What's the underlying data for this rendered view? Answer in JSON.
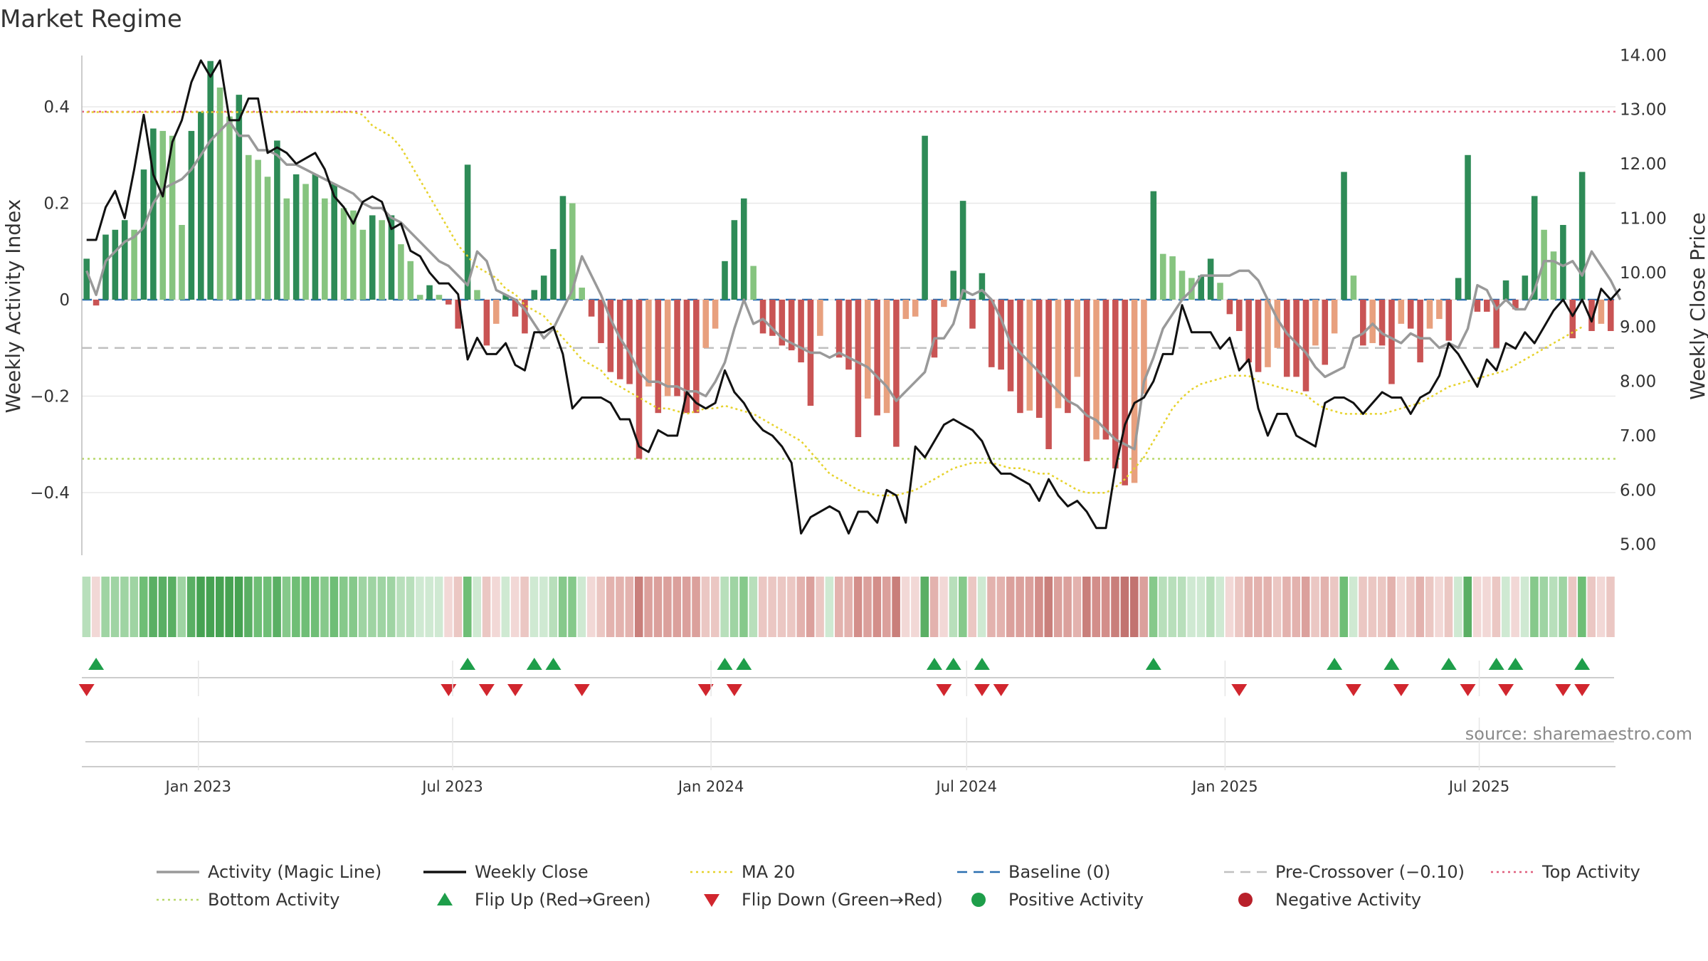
{
  "chart_data": {
    "type": "bar",
    "title": "Market Regime",
    "source": "source: sharemaestro.com",
    "ylabel_left": "Weekly Activity Index",
    "ylabel_right": "Weekly Close Price",
    "x_start": "2022-10-10",
    "x_end": "2025-10-06",
    "x_ticks": [
      "Jan 2023",
      "Jul 2023",
      "Jan 2024",
      "Jul 2024",
      "Jan 2025",
      "Jul 2025"
    ],
    "x_tick_dates": [
      "2023-01-01",
      "2023-07-01",
      "2024-01-01",
      "2024-07-01",
      "2025-01-01",
      "2025-07-01"
    ],
    "ylim_left": [
      -0.53,
      0.53
    ],
    "yticks_left": [
      0.4,
      0.2,
      0,
      -0.2,
      -0.4
    ],
    "ytick_labels_left": [
      "0.4",
      "0.2",
      "0",
      "−0.2",
      "−0.4"
    ],
    "ylim_right": [
      4.8,
      14.2
    ],
    "yticks_right": [
      14,
      13,
      12,
      11,
      10,
      9,
      8,
      7,
      6,
      5
    ],
    "ytick_labels_right": [
      "14.00",
      "13.00",
      "12.00",
      "11.00",
      "10.00",
      "9.00",
      "8.00",
      "7.00",
      "6.00",
      "5.00"
    ],
    "levels": {
      "top": 0.39,
      "pre_crossover": -0.1,
      "bottom": -0.33,
      "baseline": 0
    },
    "colors": {
      "pos_strong": "#2e8b57",
      "pos_light": "#86c47f",
      "neg_strong": "#c95454",
      "neg_light": "#e8a07e",
      "magic": "#999999",
      "close": "#111111",
      "ma20": "#e6d22c",
      "baseline": "#2a6fb0",
      "pre": "#c0c0c0",
      "top": "#e0607e",
      "bottom": "#b8d86a",
      "flip_up": "#1e9e4a",
      "flip_down": "#d1262e",
      "pos_dot": "#1e9e4a",
      "neg_dot": "#b8202a"
    },
    "series": [
      {
        "name": "Activity (Magic Line)",
        "style": "solid",
        "color": "#999999"
      },
      {
        "name": "Weekly Close",
        "style": "solid",
        "color": "#111111"
      },
      {
        "name": "MA 20",
        "style": "dotted",
        "color": "#e6d22c"
      },
      {
        "name": "Baseline (0)",
        "style": "dashed",
        "color": "#2a6fb0"
      },
      {
        "name": "Pre-Crossover (−0.10)",
        "style": "dashed",
        "color": "#c0c0c0"
      },
      {
        "name": "Top Activity",
        "style": "dotted",
        "color": "#e0607e"
      },
      {
        "name": "Bottom Activity",
        "style": "dotted",
        "color": "#b8d86a"
      },
      {
        "name": "Flip Up (Red→Green)",
        "style": "tri-up",
        "color": "#1e9e4a"
      },
      {
        "name": "Flip Down (Green→Red)",
        "style": "tri-down",
        "color": "#d1262e"
      },
      {
        "name": "Positive Activity",
        "style": "dot",
        "color": "#1e9e4a"
      },
      {
        "name": "Negative Activity",
        "style": "dot",
        "color": "#b8202a"
      }
    ],
    "activity": [
      0.085,
      -0.012,
      0.135,
      0.145,
      0.165,
      0.145,
      0.27,
      0.355,
      0.35,
      0.34,
      0.155,
      0.35,
      0.39,
      0.495,
      0.44,
      0.38,
      0.425,
      0.3,
      0.29,
      0.255,
      0.33,
      0.21,
      0.26,
      0.24,
      0.26,
      0.21,
      0.24,
      0.19,
      0.185,
      0.145,
      0.175,
      0.165,
      0.175,
      0.115,
      0.08,
      0.01,
      0.03,
      0.01,
      -0.01,
      -0.06,
      0.28,
      0.02,
      -0.095,
      -0.05,
      0.01,
      -0.035,
      -0.07,
      0.02,
      0.05,
      0.105,
      0.215,
      0.2,
      0.025,
      -0.035,
      -0.09,
      -0.15,
      -0.165,
      -0.175,
      -0.33,
      -0.18,
      -0.235,
      -0.2,
      -0.2,
      -0.235,
      -0.235,
      -0.1,
      -0.06,
      0.08,
      0.165,
      0.21,
      0.07,
      -0.07,
      -0.075,
      -0.095,
      -0.105,
      -0.13,
      -0.22,
      -0.075,
      0.0,
      -0.12,
      -0.145,
      -0.285,
      -0.205,
      -0.24,
      -0.235,
      -0.305,
      -0.04,
      -0.035,
      0.34,
      -0.12,
      -0.015,
      0.06,
      0.205,
      -0.06,
      0.055,
      -0.14,
      -0.145,
      -0.19,
      -0.235,
      -0.23,
      -0.245,
      -0.31,
      -0.225,
      -0.235,
      -0.16,
      -0.335,
      -0.29,
      -0.29,
      -0.35,
      -0.385,
      -0.38,
      -0.195,
      0.225,
      0.095,
      0.09,
      0.06,
      0.045,
      0.05,
      0.085,
      0.035,
      -0.03,
      -0.065,
      -0.13,
      -0.15,
      -0.14,
      -0.1,
      -0.16,
      -0.16,
      -0.19,
      -0.095,
      -0.135,
      -0.07,
      0.265,
      0.05,
      -0.095,
      -0.09,
      -0.095,
      -0.175,
      -0.05,
      -0.06,
      -0.13,
      -0.06,
      -0.04,
      -0.085,
      0.045,
      0.3,
      -0.025,
      -0.025,
      -0.1,
      0.04,
      -0.02,
      0.05,
      0.215,
      0.145,
      0.1,
      0.155,
      -0.08,
      0.265,
      -0.065,
      -0.05,
      -0.065
    ],
    "magic_line": [
      0.06,
      0.01,
      0.08,
      0.1,
      0.12,
      0.13,
      0.15,
      0.2,
      0.23,
      0.24,
      0.25,
      0.27,
      0.3,
      0.33,
      0.35,
      0.37,
      0.34,
      0.34,
      0.31,
      0.31,
      0.3,
      0.28,
      0.28,
      0.27,
      0.26,
      0.25,
      0.24,
      0.23,
      0.22,
      0.2,
      0.19,
      0.19,
      0.17,
      0.16,
      0.14,
      0.12,
      0.1,
      0.08,
      0.07,
      0.05,
      0.03,
      0.1,
      0.08,
      0.02,
      0.01,
      0.0,
      -0.02,
      -0.05,
      -0.08,
      -0.06,
      -0.02,
      0.02,
      0.09,
      0.05,
      0.01,
      -0.04,
      -0.08,
      -0.11,
      -0.15,
      -0.17,
      -0.17,
      -0.18,
      -0.18,
      -0.19,
      -0.19,
      -0.2,
      -0.17,
      -0.13,
      -0.06,
      0.0,
      -0.05,
      -0.04,
      -0.06,
      -0.08,
      -0.09,
      -0.1,
      -0.11,
      -0.11,
      -0.12,
      -0.11,
      -0.12,
      -0.13,
      -0.14,
      -0.16,
      -0.18,
      -0.21,
      -0.19,
      -0.17,
      -0.15,
      -0.08,
      -0.08,
      -0.05,
      0.02,
      0.01,
      0.02,
      0.0,
      -0.04,
      -0.09,
      -0.11,
      -0.13,
      -0.15,
      -0.17,
      -0.19,
      -0.21,
      -0.22,
      -0.24,
      -0.25,
      -0.27,
      -0.29,
      -0.3,
      -0.31,
      -0.17,
      -0.12,
      -0.06,
      -0.03,
      0.0,
      0.02,
      0.05,
      0.05,
      0.05,
      0.05,
      0.06,
      0.06,
      0.04,
      0.0,
      -0.04,
      -0.07,
      -0.09,
      -0.11,
      -0.14,
      -0.16,
      -0.15,
      -0.14,
      -0.08,
      -0.07,
      -0.05,
      -0.07,
      -0.08,
      -0.09,
      -0.07,
      -0.08,
      -0.08,
      -0.1,
      -0.09,
      -0.1,
      -0.06,
      0.03,
      0.02,
      -0.02,
      0.0,
      -0.02,
      -0.02,
      0.02,
      0.08,
      0.08,
      0.07,
      0.08,
      0.05,
      0.1,
      0.07,
      0.04,
      0.0
    ],
    "weekly_close": [
      10.6,
      10.6,
      11.2,
      11.5,
      11.0,
      11.9,
      12.9,
      11.8,
      11.4,
      12.4,
      12.8,
      13.5,
      13.9,
      13.6,
      13.9,
      12.8,
      12.8,
      13.2,
      13.2,
      12.2,
      12.3,
      12.2,
      12.0,
      12.1,
      12.2,
      11.9,
      11.4,
      11.2,
      10.9,
      11.3,
      11.4,
      11.3,
      10.8,
      10.9,
      10.4,
      10.3,
      10.0,
      9.8,
      9.8,
      9.6,
      8.4,
      8.8,
      8.5,
      8.5,
      8.7,
      8.3,
      8.2,
      8.9,
      8.9,
      9.0,
      8.5,
      7.5,
      7.7,
      7.7,
      7.7,
      7.6,
      7.3,
      7.3,
      6.8,
      6.7,
      7.1,
      7.0,
      7.0,
      7.8,
      7.6,
      7.5,
      7.6,
      8.2,
      7.8,
      7.6,
      7.3,
      7.1,
      7.0,
      6.8,
      6.5,
      5.2,
      5.5,
      5.6,
      5.7,
      5.6,
      5.2,
      5.6,
      5.6,
      5.4,
      6.0,
      5.9,
      5.4,
      6.8,
      6.6,
      6.9,
      7.2,
      7.3,
      7.2,
      7.1,
      6.9,
      6.5,
      6.3,
      6.3,
      6.2,
      6.1,
      5.8,
      6.2,
      5.9,
      5.7,
      5.8,
      5.6,
      5.3,
      5.3,
      6.4,
      7.2,
      7.6,
      7.7,
      8.0,
      8.5,
      8.5,
      9.4,
      8.9,
      8.9,
      8.9,
      8.6,
      8.8,
      8.2,
      8.4,
      7.5,
      7.0,
      7.4,
      7.4,
      7.0,
      6.9,
      6.8,
      7.6,
      7.7,
      7.7,
      7.6,
      7.4,
      7.6,
      7.8,
      7.7,
      7.7,
      7.4,
      7.7,
      7.8,
      8.1,
      8.7,
      8.5,
      8.2,
      7.9,
      8.4,
      8.2,
      8.7,
      8.6,
      8.9,
      8.7,
      9.0,
      9.3,
      9.5,
      9.2,
      9.5,
      9.1,
      9.7,
      9.5,
      9.7
    ],
    "ma20": [
      12.95,
      12.95,
      12.95,
      12.95,
      12.95,
      12.95,
      12.95,
      12.95,
      12.95,
      12.95,
      12.95,
      12.95,
      12.95,
      12.95,
      12.95,
      12.95,
      12.95,
      12.95,
      12.95,
      12.95,
      12.95,
      12.95,
      12.95,
      12.95,
      12.95,
      12.95,
      12.95,
      12.95,
      12.95,
      12.9,
      12.7,
      12.6,
      12.5,
      12.3,
      12.0,
      11.7,
      11.4,
      11.1,
      10.8,
      10.5,
      10.3,
      10.1,
      10.0,
      9.9,
      9.7,
      9.6,
      9.4,
      9.3,
      9.2,
      9.0,
      8.8,
      8.6,
      8.4,
      8.3,
      8.2,
      8.0,
      7.9,
      7.8,
      7.7,
      7.6,
      7.5,
      7.5,
      7.45,
      7.4,
      7.45,
      7.5,
      7.5,
      7.55,
      7.5,
      7.45,
      7.4,
      7.3,
      7.2,
      7.1,
      7.0,
      6.9,
      6.7,
      6.5,
      6.3,
      6.2,
      6.1,
      6.0,
      5.95,
      5.9,
      5.9,
      5.9,
      5.95,
      6.0,
      6.1,
      6.2,
      6.3,
      6.4,
      6.45,
      6.5,
      6.5,
      6.5,
      6.45,
      6.4,
      6.4,
      6.35,
      6.3,
      6.3,
      6.2,
      6.1,
      6.0,
      5.95,
      5.95,
      5.95,
      6.05,
      6.2,
      6.4,
      6.6,
      6.9,
      7.2,
      7.5,
      7.7,
      7.85,
      7.95,
      8.0,
      8.05,
      8.1,
      8.1,
      8.1,
      8.0,
      7.95,
      7.9,
      7.85,
      7.8,
      7.75,
      7.6,
      7.5,
      7.45,
      7.4,
      7.4,
      7.4,
      7.4,
      7.4,
      7.45,
      7.5,
      7.55,
      7.6,
      7.7,
      7.8,
      7.9,
      7.95,
      8.0,
      8.05,
      8.1,
      8.15,
      8.2,
      8.3,
      8.4,
      8.5,
      8.6,
      8.7,
      8.8,
      8.9,
      9.0
    ],
    "flip_up_index": [
      1,
      40,
      47,
      49,
      67,
      69,
      89,
      91,
      94,
      112,
      131,
      137,
      143,
      148,
      150,
      157
    ],
    "flip_down_index": [
      0,
      38,
      42,
      45,
      52,
      65,
      68,
      90,
      94,
      96,
      121,
      133,
      138,
      145,
      149,
      155,
      157
    ],
    "regime_strip_note": "strip colour follows the sign and strength of each week's activity"
  },
  "legend_items": [
    {
      "label": "Activity (Magic Line)"
    },
    {
      "label": "Weekly Close"
    },
    {
      "label": "MA 20"
    },
    {
      "label": "Baseline (0)"
    },
    {
      "label": "Pre-Crossover (−0.10)"
    },
    {
      "label": "Top Activity"
    },
    {
      "label": "Bottom Activity"
    },
    {
      "label": "Flip Up (Red→Green)"
    },
    {
      "label": "Flip Down (Green→Red)"
    },
    {
      "label": "Positive Activity"
    },
    {
      "label": "Negative Activity"
    }
  ]
}
